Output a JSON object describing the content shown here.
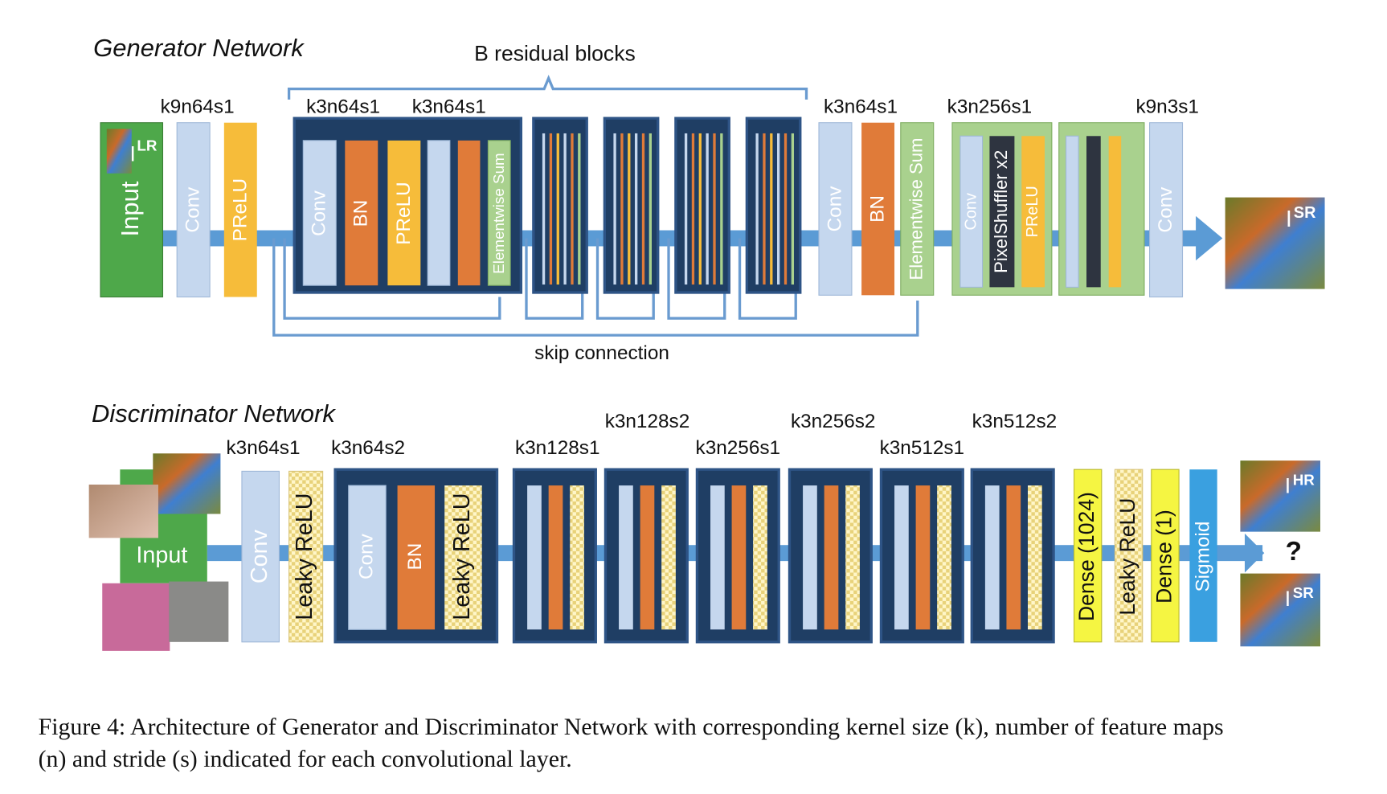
{
  "generator": {
    "title": "Generator Network",
    "group_label": "B residual blocks",
    "skip_label": "skip connection",
    "input_label": "Input",
    "lr_symbol": "I",
    "lr_sub": "LR",
    "layer_labels": [
      "k9n64s1",
      "k3n64s1",
      "k3n64s1",
      "k3n64s1",
      "k3n256s1",
      "k9n3s1"
    ],
    "layers": [
      "Conv",
      "PReLU",
      "Conv",
      "BN",
      "PReLU",
      "Elementwise Sum",
      "Conv",
      "BN",
      "Elementwise Sum",
      "Conv",
      "PixelShuffler x2",
      "PReLU",
      "Conv"
    ],
    "output_symbol": "I",
    "output_sub": "SR"
  },
  "discriminator": {
    "title": "Discriminator Network",
    "input_label": "Input",
    "layer_labels": [
      "k3n64s1",
      "k3n64s2",
      "k3n128s1",
      "k3n128s2",
      "k3n256s1",
      "k3n256s2",
      "k3n512s1",
      "k3n512s2"
    ],
    "layers": [
      "Conv",
      "Leaky ReLU",
      "Conv",
      "BN",
      "Leaky ReLU",
      "Dense (1024)",
      "Leaky ReLU",
      "Dense (1)",
      "Sigmoid"
    ],
    "output": "?",
    "hr_symbol": "I",
    "hr_sub": "HR",
    "sr_symbol": "I",
    "sr_sub": "SR"
  },
  "caption": [
    "Figure 4: Architecture of Generator and Discriminator Network with corresponding kernel size (k), number of feature maps",
    "(n) and stride (s) indicated for each convolutional layer."
  ]
}
